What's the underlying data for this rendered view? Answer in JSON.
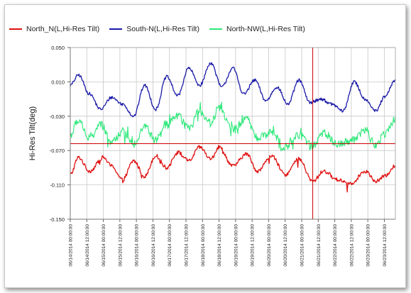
{
  "chart_data": {
    "type": "line",
    "ylabel": "Hi-Res Tilt(deg)",
    "ylim": [
      -0.15,
      0.05
    ],
    "yticks": [
      -0.15,
      -0.11,
      -0.07,
      -0.03,
      0.01,
      0.05
    ],
    "ytick_labels": [
      "-0.150",
      "-0.110",
      "-0.070",
      "-0.030",
      "0.010",
      "0.050"
    ],
    "xlim": [
      "06/14/2014 00:00",
      "06/23/2014 20:00"
    ],
    "xticks": [
      "06/14/2014 00:00:00",
      "06/14/2014 12:00:00",
      "06/15/2014 00:00:00",
      "06/15/2014 12:00:00",
      "06/16/2014 00:00:00",
      "06/16/2014 12:00:00",
      "06/17/2014 00:00:00",
      "06/17/2014 12:00:00",
      "06/18/2014 00:00:00",
      "06/18/2014 12:00:00",
      "06/19/2014 00:00:00",
      "06/19/2014 12:00:00",
      "06/20/2014 00:00:00",
      "06/20/2014 12:00:00",
      "06/21/2014 00:00:00",
      "06/21/2014 12:00:00",
      "06/22/2014 00:00:00",
      "06/22/2014 12:00:00",
      "06/23/2014 00:00:00",
      "06/23/2014 12:00:00"
    ],
    "grid": true,
    "legend_position": "top",
    "cursor": {
      "x": "06/21/2014 08:00",
      "y": -0.062,
      "color": "#cc0000"
    },
    "series": [
      {
        "name": "North_N(L,Hi-Res Tilt)",
        "color": "#e01010",
        "points": [
          [
            "06/14/2014 00:00",
            -0.098
          ],
          [
            "06/14/2014 06:00",
            -0.078
          ],
          [
            "06/14/2014 14:00",
            -0.094
          ],
          [
            "06/15/2014 00:00",
            -0.078
          ],
          [
            "06/15/2014 06:00",
            -0.088
          ],
          [
            "06/15/2014 14:00",
            -0.104
          ],
          [
            "06/15/2014 22:00",
            -0.082
          ],
          [
            "06/16/2014 06:00",
            -0.1
          ],
          [
            "06/16/2014 14:00",
            -0.076
          ],
          [
            "06/16/2014 22:00",
            -0.09
          ],
          [
            "06/17/2014 06:00",
            -0.072
          ],
          [
            "06/17/2014 14:00",
            -0.082
          ],
          [
            "06/17/2014 22:00",
            -0.066
          ],
          [
            "06/18/2014 06:00",
            -0.08
          ],
          [
            "06/18/2014 12:00",
            -0.066
          ],
          [
            "06/18/2014 22:00",
            -0.088
          ],
          [
            "06/19/2014 08:00",
            -0.074
          ],
          [
            "06/19/2014 16:00",
            -0.094
          ],
          [
            "06/20/2014 02:00",
            -0.076
          ],
          [
            "06/20/2014 12:00",
            -0.098
          ],
          [
            "06/20/2014 22:00",
            -0.08
          ],
          [
            "06/21/2014 08:00",
            -0.106
          ],
          [
            "06/21/2014 16:00",
            -0.094
          ],
          [
            "06/22/2014 02:00",
            -0.104
          ],
          [
            "06/22/2014 12:00",
            -0.108
          ],
          [
            "06/22/2014 22:00",
            -0.094
          ],
          [
            "06/23/2014 06:00",
            -0.106
          ],
          [
            "06/23/2014 12:00",
            -0.1
          ],
          [
            "06/23/2014 20:00",
            -0.088
          ]
        ]
      },
      {
        "name": "South-N(L,Hi-Res Tilt)",
        "color": "#1a1aa8",
        "points": [
          [
            "06/14/2014 00:00",
            0.006
          ],
          [
            "06/14/2014 06:00",
            0.018
          ],
          [
            "06/14/2014 14:00",
            -0.004
          ],
          [
            "06/14/2014 22:00",
            -0.022
          ],
          [
            "06/15/2014 06:00",
            -0.008
          ],
          [
            "06/15/2014 14:00",
            -0.016
          ],
          [
            "06/15/2014 22:00",
            -0.03
          ],
          [
            "06/16/2014 06:00",
            0.006
          ],
          [
            "06/16/2014 14:00",
            -0.022
          ],
          [
            "06/16/2014 22:00",
            0.016
          ],
          [
            "06/17/2014 06:00",
            -0.006
          ],
          [
            "06/17/2014 14:00",
            0.026
          ],
          [
            "06/17/2014 22:00",
            0.006
          ],
          [
            "06/18/2014 06:00",
            0.032
          ],
          [
            "06/18/2014 14:00",
            0.004
          ],
          [
            "06/18/2014 22:00",
            0.026
          ],
          [
            "06/19/2014 06:00",
            -0.004
          ],
          [
            "06/19/2014 14:00",
            0.012
          ],
          [
            "06/19/2014 22:00",
            -0.012
          ],
          [
            "06/20/2014 06:00",
            0.004
          ],
          [
            "06/20/2014 14:00",
            -0.016
          ],
          [
            "06/20/2014 22:00",
            0.012
          ],
          [
            "06/21/2014 06:00",
            -0.014
          ],
          [
            "06/21/2014 14:00",
            -0.01
          ],
          [
            "06/21/2014 22:00",
            -0.016
          ],
          [
            "06/22/2014 06:00",
            -0.024
          ],
          [
            "06/22/2014 14:00",
            0.01
          ],
          [
            "06/22/2014 22:00",
            -0.01
          ],
          [
            "06/23/2014 06:00",
            -0.024
          ],
          [
            "06/23/2014 12:00",
            -0.008
          ],
          [
            "06/23/2014 20:00",
            0.012
          ]
        ]
      },
      {
        "name": "North-NW(L,Hi-Res Tilt)",
        "color": "#2ee87a",
        "points": [
          [
            "06/14/2014 00:00",
            -0.052
          ],
          [
            "06/14/2014 06:00",
            -0.034
          ],
          [
            "06/14/2014 14:00",
            -0.056
          ],
          [
            "06/14/2014 22:00",
            -0.04
          ],
          [
            "06/15/2014 06:00",
            -0.06
          ],
          [
            "06/15/2014 14:00",
            -0.048
          ],
          [
            "06/15/2014 22:00",
            -0.062
          ],
          [
            "06/16/2014 06:00",
            -0.042
          ],
          [
            "06/16/2014 14:00",
            -0.058
          ],
          [
            "06/16/2014 22:00",
            -0.04
          ],
          [
            "06/17/2014 06:00",
            -0.03
          ],
          [
            "06/17/2014 14:00",
            -0.044
          ],
          [
            "06/17/2014 22:00",
            -0.024
          ],
          [
            "06/18/2014 06:00",
            -0.038
          ],
          [
            "06/18/2014 12:00",
            -0.02
          ],
          [
            "06/18/2014 22:00",
            -0.046
          ],
          [
            "06/19/2014 08:00",
            -0.034
          ],
          [
            "06/19/2014 16:00",
            -0.056
          ],
          [
            "06/20/2014 02:00",
            -0.048
          ],
          [
            "06/20/2014 12:00",
            -0.066
          ],
          [
            "06/20/2014 22:00",
            -0.052
          ],
          [
            "06/21/2014 08:00",
            -0.064
          ],
          [
            "06/21/2014 16:00",
            -0.05
          ],
          [
            "06/22/2014 02:00",
            -0.062
          ],
          [
            "06/22/2014 12:00",
            -0.058
          ],
          [
            "06/22/2014 22:00",
            -0.046
          ],
          [
            "06/23/2014 06:00",
            -0.064
          ],
          [
            "06/23/2014 12:00",
            -0.05
          ],
          [
            "06/23/2014 20:00",
            -0.034
          ]
        ]
      }
    ]
  }
}
